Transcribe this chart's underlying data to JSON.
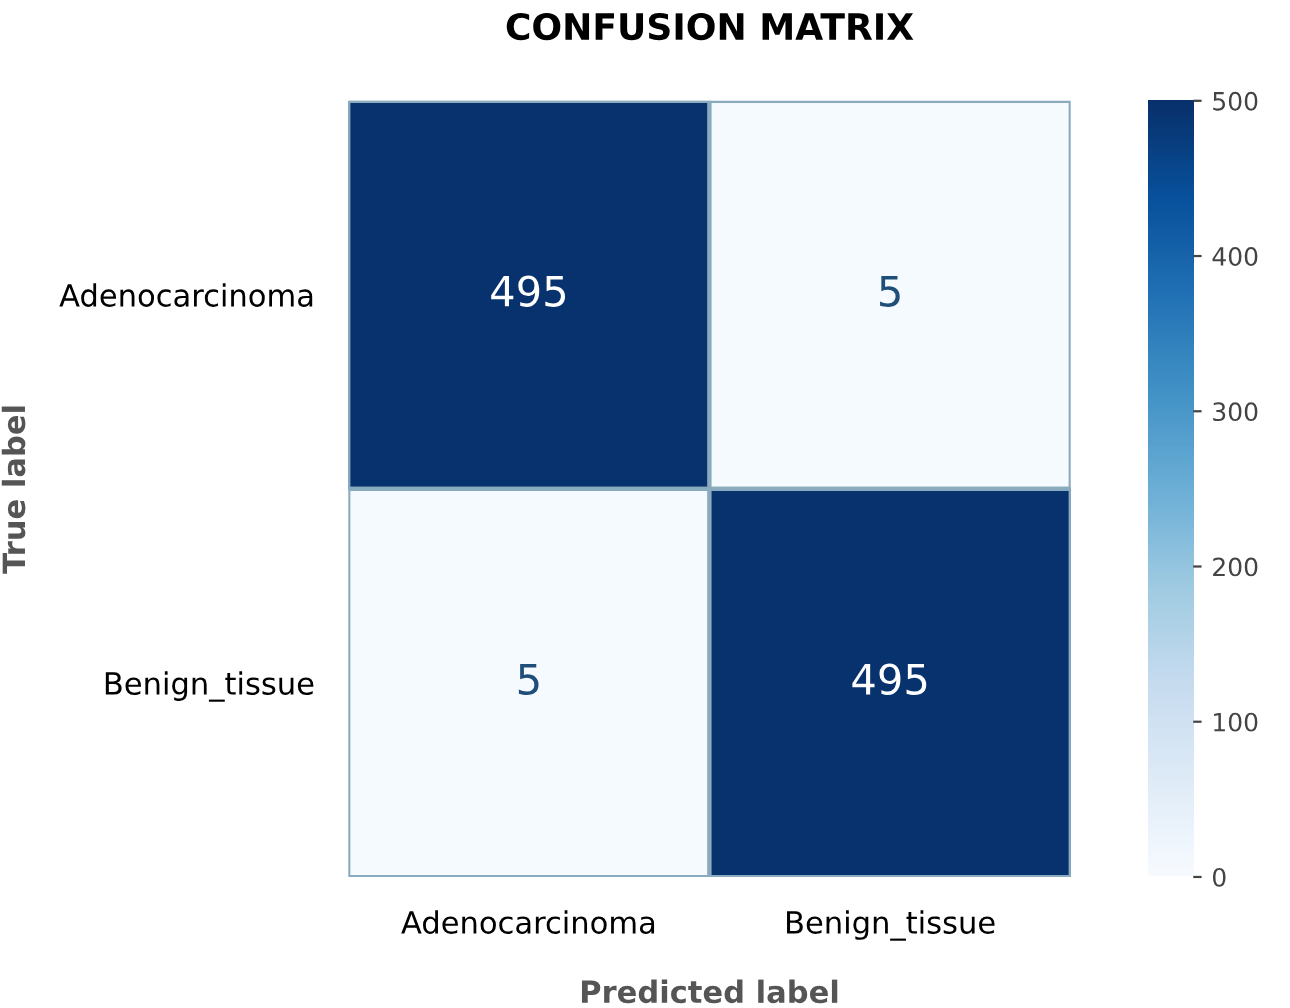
{
  "chart_data": {
    "type": "heatmap",
    "title": "CONFUSION MATRIX",
    "xlabel": "Predicted label",
    "ylabel": "True label",
    "categories": [
      "Adenocarcinoma",
      "Benign_tissue"
    ],
    "y_categories": [
      "Adenocarcinoma",
      "Benign_tissue"
    ],
    "cells": [
      [
        495,
        5
      ],
      [
        5,
        495
      ]
    ],
    "clim": [
      0,
      500
    ],
    "cticks": [
      0,
      100,
      200,
      300,
      400,
      500
    ],
    "data_labels": true
  }
}
